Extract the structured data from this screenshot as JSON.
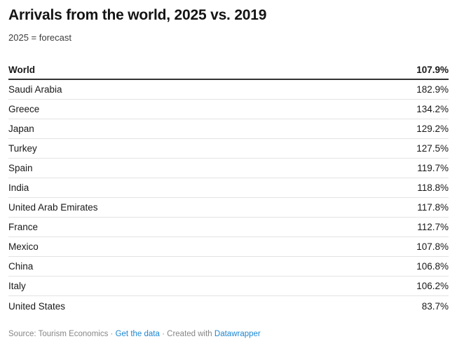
{
  "title": "Arrivals from the world, 2025 vs. 2019",
  "subtitle": "2025 = forecast",
  "chart_data": {
    "type": "table",
    "title": "Arrivals from the world, 2025 vs. 2019",
    "subtitle": "2025 = forecast",
    "value_unit": "%",
    "summary_row": {
      "label": "World",
      "value": 107.9,
      "display": "107.9%"
    },
    "rows": [
      {
        "label": "Saudi Arabia",
        "value": 182.9,
        "display": "182.9%"
      },
      {
        "label": "Greece",
        "value": 134.2,
        "display": "134.2%"
      },
      {
        "label": "Japan",
        "value": 129.2,
        "display": "129.2%"
      },
      {
        "label": "Turkey",
        "value": 127.5,
        "display": "127.5%"
      },
      {
        "label": "Spain",
        "value": 119.7,
        "display": "119.7%"
      },
      {
        "label": "India",
        "value": 118.8,
        "display": "118.8%"
      },
      {
        "label": "United Arab Emirates",
        "value": 117.8,
        "display": "117.8%"
      },
      {
        "label": "France",
        "value": 112.7,
        "display": "112.7%"
      },
      {
        "label": "Mexico",
        "value": 107.8,
        "display": "107.8%"
      },
      {
        "label": "China",
        "value": 106.8,
        "display": "106.8%"
      },
      {
        "label": "Italy",
        "value": 106.2,
        "display": "106.2%"
      },
      {
        "label": "United States",
        "value": 83.7,
        "display": "83.7%"
      }
    ]
  },
  "footer": {
    "source_label": "Source:",
    "source": "Tourism Economics",
    "separator": "·",
    "get_data_label": "Get the data",
    "created_with_label": "Created with",
    "brand_label": "Datawrapper"
  },
  "colors": {
    "text": "#191919",
    "subtitle_text": "#3d3d3d",
    "muted_text": "#868686",
    "link": "#1d87d1",
    "rule_strong": "#333333",
    "rule_light": "#e3e3e3",
    "background": "#ffffff"
  }
}
